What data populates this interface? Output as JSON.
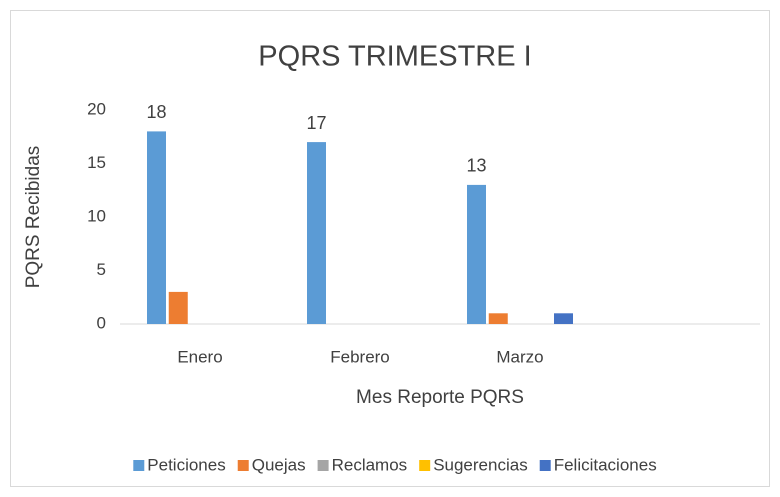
{
  "chart_data": {
    "type": "bar",
    "title": "PQRS TRIMESTRE I",
    "x_label": "Mes Reporte PQRS",
    "y_label": "PQRS Recibidas",
    "categories": [
      "Enero",
      "Febrero",
      "Marzo",
      null
    ],
    "series": [
      {
        "name": "Peticiones",
        "color": "#5b9bd5",
        "values": [
          18,
          17,
          13,
          null
        ],
        "show_labels": true
      },
      {
        "name": "Quejas",
        "color": "#ed7d31",
        "values": [
          3,
          0,
          1,
          null
        ],
        "show_labels": false
      },
      {
        "name": "Reclamos",
        "color": "#a5a5a5",
        "values": [
          0,
          0,
          0,
          null
        ],
        "show_labels": false
      },
      {
        "name": "Sugerencias",
        "color": "#ffc000",
        "values": [
          0,
          0,
          0,
          null
        ],
        "show_labels": false
      },
      {
        "name": "Felicitaciones",
        "color": "#4472c4",
        "values": [
          0,
          0,
          1,
          null
        ],
        "show_labels": false
      }
    ],
    "ylim": [
      0,
      20
    ],
    "yticks": [
      0,
      5,
      10,
      15,
      20
    ],
    "grid": false,
    "legend": "bottom"
  }
}
